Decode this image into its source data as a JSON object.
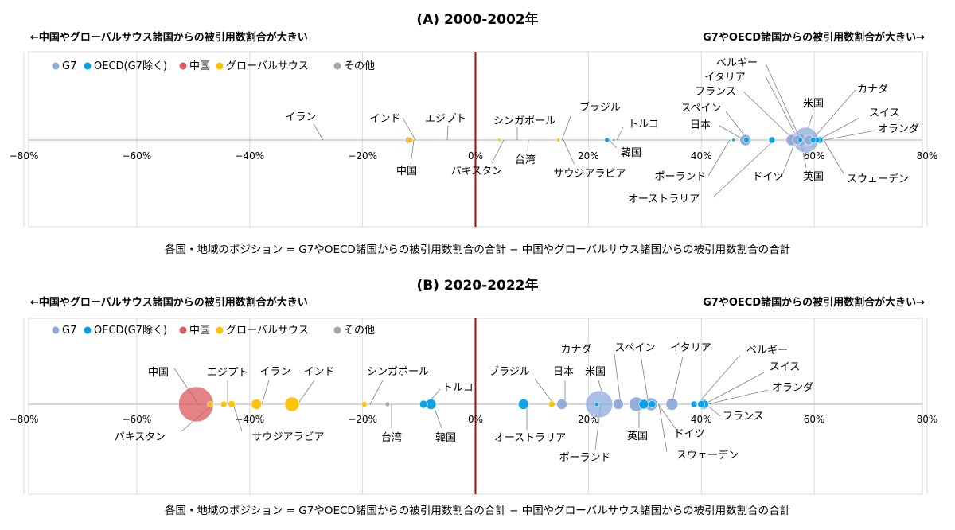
{
  "colors": {
    "G7": "#8ea9db",
    "OECD": "#00a0e9",
    "China": "#d9595f",
    "GlobalSouth": "#ffc000",
    "Other": "#a6a6a6"
  },
  "chart_data": [
    {
      "type": "scatter",
      "title": "(A) 2000-2002年",
      "left_caption": "←中国やグローバルサウス諸国からの被引用数割合が大きい",
      "right_caption": "G7やOECD諸国からの被引用数割合が大きい→",
      "xlabel": "各国・地域のポジション = G7やOECD諸国からの被引用数割合の合計 − 中国やグローバルサウス諸国からの被引用数割合の合計",
      "xlim": [
        -80,
        80
      ],
      "x_ticks": [
        -80,
        -60,
        -40,
        -20,
        0,
        20,
        40,
        60,
        80
      ],
      "x_tick_labels": [
        "−80%",
        "−60%",
        "−40%",
        "−20%",
        "0%",
        "20%",
        "40%",
        "60%",
        "80%"
      ],
      "grid": true,
      "legend": [
        "G7",
        "OECD(G7除く)",
        "中国",
        "グローバルサウス",
        "その他"
      ],
      "legend_position": "top-left",
      "points": [
        {
          "name": "イラン",
          "x": -28.5,
          "group": "Other",
          "r": 1
        },
        {
          "name": "インド",
          "x": -11.6,
          "group": "GlobalSouth",
          "r": 3.5
        },
        {
          "name": "中国",
          "x": -11.8,
          "group": "China",
          "r": 4
        },
        {
          "name": "エジプト",
          "x": -6.5,
          "group": "Other",
          "r": 1
        },
        {
          "name": "パキスタン",
          "x": 4.2,
          "group": "GlobalSouth",
          "r": 2
        },
        {
          "name": "シンガポール",
          "x": 8.5,
          "group": "Other",
          "r": 1
        },
        {
          "name": "台湾",
          "x": 8.8,
          "group": "Other",
          "r": 1
        },
        {
          "name": "ブラジル",
          "x": 14.7,
          "group": "GlobalSouth",
          "r": 2.5
        },
        {
          "name": "サウジアラビア",
          "x": 15.0,
          "group": "GlobalSouth",
          "r": 1
        },
        {
          "name": "韓国",
          "x": 23.3,
          "group": "OECD",
          "r": 3
        },
        {
          "name": "トルコ",
          "x": 24.5,
          "group": "OECD",
          "r": 1.5
        },
        {
          "name": "ポーランド",
          "x": 45.7,
          "group": "OECD",
          "r": 2
        },
        {
          "name": "日本",
          "x": 47.8,
          "group": "G7",
          "r": 7
        },
        {
          "name": "スペイン",
          "x": 48.0,
          "group": "OECD",
          "r": 3.5
        },
        {
          "name": "オーストラリア",
          "x": 52.5,
          "group": "OECD",
          "r": 4
        },
        {
          "name": "フランス",
          "x": 56.0,
          "group": "G7",
          "r": 7
        },
        {
          "name": "ドイツ",
          "x": 56.5,
          "group": "G7",
          "r": 8
        },
        {
          "name": "イタリア",
          "x": 57.0,
          "group": "G7",
          "r": 6
        },
        {
          "name": "ベルギー",
          "x": 57.5,
          "group": "OECD",
          "r": 3
        },
        {
          "name": "米国",
          "x": 58.5,
          "group": "G7",
          "r": 16
        },
        {
          "name": "英国",
          "x": 57.5,
          "group": "G7",
          "r": 8
        },
        {
          "name": "カナダ",
          "x": 59.0,
          "group": "G7",
          "r": 6
        },
        {
          "name": "スウェーデン",
          "x": 60.5,
          "group": "OECD",
          "r": 3.5
        },
        {
          "name": "スイス",
          "x": 59.8,
          "group": "OECD",
          "r": 3.5
        },
        {
          "name": "オランダ",
          "x": 61.0,
          "group": "OECD",
          "r": 4
        }
      ]
    },
    {
      "type": "scatter",
      "title": "(B) 2020-2022年",
      "left_caption": "←中国やグローバルサウス諸国からの被引用数割合が大きい",
      "right_caption": "G7やOECD諸国からの被引用数割合が大きい→",
      "xlabel": "各国・地域のポジション = G7やOECD諸国からの被引用数割合の合計 − 中国やグローバルサウス諸国からの被引用数割合の合計",
      "xlim": [
        -80,
        80
      ],
      "x_ticks": [
        -80,
        -60,
        -40,
        -20,
        0,
        20,
        40,
        60,
        80
      ],
      "x_tick_labels": [
        "−80%",
        "−60%",
        "−40%",
        "−20%",
        "0%",
        "20%",
        "40%",
        "60%",
        "80%"
      ],
      "grid": true,
      "legend": [
        "G7",
        "OECD(G7除く)",
        "中国",
        "グローバルサウス",
        "その他"
      ],
      "legend_position": "top-left",
      "points": [
        {
          "name": "中国",
          "x": -49.5,
          "group": "China",
          "r": 22
        },
        {
          "name": "パキスタン",
          "x": -47.0,
          "group": "GlobalSouth",
          "r": 3.5
        },
        {
          "name": "エジプト",
          "x": -44.6,
          "group": "GlobalSouth",
          "r": 4
        },
        {
          "name": "サウジアラビア",
          "x": -43.2,
          "group": "GlobalSouth",
          "r": 4.5
        },
        {
          "name": "イラン",
          "x": -38.8,
          "group": "GlobalSouth",
          "r": 6.5
        },
        {
          "name": "インド",
          "x": -32.5,
          "group": "GlobalSouth",
          "r": 9
        },
        {
          "name": "シンガポール",
          "x": -19.7,
          "group": "GlobalSouth",
          "r": 3.5
        },
        {
          "name": "台湾",
          "x": -15.6,
          "group": "Other",
          "r": 3
        },
        {
          "name": "トルコ",
          "x": -9.2,
          "group": "OECD",
          "r": 5
        },
        {
          "name": "韓国",
          "x": -7.9,
          "group": "OECD",
          "r": 6.5
        },
        {
          "name": "オーストラリア",
          "x": 8.5,
          "group": "OECD",
          "r": 6.5
        },
        {
          "name": "ブラジル",
          "x": 13.5,
          "group": "GlobalSouth",
          "r": 4
        },
        {
          "name": "日本",
          "x": 15.3,
          "group": "G7",
          "r": 6.5
        },
        {
          "name": "ポーランド",
          "x": 21.5,
          "group": "OECD",
          "r": 3
        },
        {
          "name": "米国",
          "x": 21.9,
          "group": "G7",
          "r": 17
        },
        {
          "name": "カナダ",
          "x": 25.3,
          "group": "G7",
          "r": 6.5
        },
        {
          "name": "英国",
          "x": 28.5,
          "group": "G7",
          "r": 9
        },
        {
          "name": "スペイン",
          "x": 29.8,
          "group": "OECD",
          "r": 6
        },
        {
          "name": "ドイツ",
          "x": 31.1,
          "group": "G7",
          "r": 8
        },
        {
          "name": "スウェーデン",
          "x": 31.3,
          "group": "OECD",
          "r": 4.5
        },
        {
          "name": "イタリア",
          "x": 34.8,
          "group": "G7",
          "r": 7.5
        },
        {
          "name": "ベルギー",
          "x": 38.7,
          "group": "OECD",
          "r": 4
        },
        {
          "name": "スイス",
          "x": 40.0,
          "group": "OECD",
          "r": 4.5
        },
        {
          "name": "フランス",
          "x": 40.4,
          "group": "G7",
          "r": 6.5
        },
        {
          "name": "オランダ",
          "x": 40.6,
          "group": "OECD",
          "r": 5
        }
      ]
    }
  ]
}
